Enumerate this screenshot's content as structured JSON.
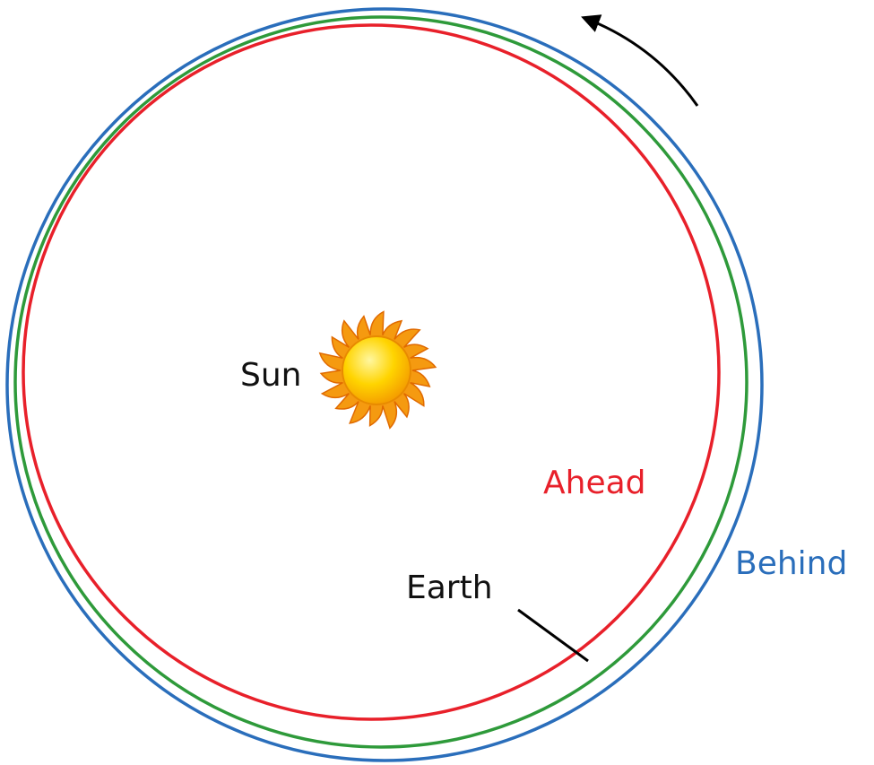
{
  "labels": {
    "sun": "Sun",
    "ahead": "Ahead",
    "behind": "Behind",
    "earth": "Earth"
  }
}
